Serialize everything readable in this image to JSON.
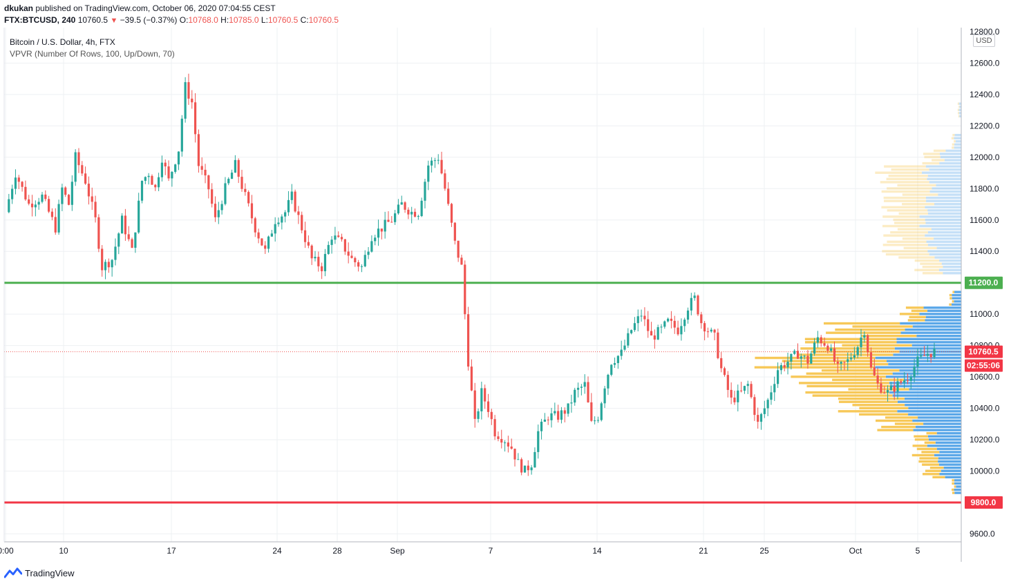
{
  "header": {
    "user": "dkukan",
    "published": "published on TradingView.com, October 06, 2020 07:04:55 CEST",
    "symbol": "FTX:BTCUSD, 240",
    "last": "10760.5",
    "change": "−39.5 (−0.37%)",
    "o_label": "O:",
    "o_val": "10768.0",
    "h_label": "H:",
    "h_val": "10785.0",
    "l_label": "L:",
    "l_val": "10760.5",
    "c_label": "C:",
    "c_val": "10760.5"
  },
  "legend": {
    "title": "Bitcoin / U.S. Dollar, 4h, FTX",
    "indicator": "VPVR (Number Of Rows, 100, Up/Down, 70)"
  },
  "currency": "USD",
  "price_labels": {
    "green_level": "11200.0",
    "red_level": "9800.0",
    "last_price": "10760.5",
    "countdown": "02:55:06",
    "top_partial": "12800.0"
  },
  "footer": {
    "brand": "TradingView"
  },
  "colors": {
    "up": "#26a69a",
    "down": "#ef5350",
    "green_line": "#4caf50",
    "red_line": "#f23645",
    "vp_up": "#5aa7e8",
    "vp_down": "#f7c858",
    "grid": "#eef0f3"
  },
  "chart_data": {
    "type": "candlestick",
    "title": "Bitcoin / U.S. Dollar, 4h, FTX",
    "ylim": [
      9500,
      12850
    ],
    "y_ticks": [
      12600,
      12400,
      12200,
      12000,
      11800,
      11600,
      11400,
      11200,
      11000,
      10800,
      10600,
      10400,
      10200,
      10000,
      9800,
      9600
    ],
    "y_tick_labels": [
      "12600.0",
      "12400.0",
      "12200.0",
      "12000.0",
      "11800.0",
      "11600.0",
      "11400.0",
      "11200.0",
      "11000.0",
      "10800.0",
      "10600.0",
      "10400.0",
      "10200.0",
      "10000.0",
      "9800.0",
      "9600.0"
    ],
    "x_tick_labels": [
      "0:00",
      "10",
      "17",
      "24",
      "28",
      "Sep",
      "7",
      "14",
      "21",
      "25",
      "Oct",
      "5"
    ],
    "horizontal_levels": [
      {
        "value": 11200,
        "label": "11200.0",
        "color": "#4caf50"
      },
      {
        "value": 9800,
        "label": "9800.0",
        "color": "#f23645"
      }
    ],
    "last_price": 10760.5,
    "path": [
      [
        0,
        11650
      ],
      [
        3,
        11900
      ],
      [
        7,
        11700
      ],
      [
        11,
        11750
      ],
      [
        15,
        11550
      ],
      [
        17,
        11800
      ],
      [
        19,
        11700
      ],
      [
        21,
        12000
      ],
      [
        24,
        11850
      ],
      [
        27,
        11600
      ],
      [
        29,
        11300
      ],
      [
        32,
        11350
      ],
      [
        35,
        11600
      ],
      [
        38,
        11400
      ],
      [
        41,
        11850
      ],
      [
        43,
        11900
      ],
      [
        45,
        11800
      ],
      [
        47,
        12000
      ],
      [
        49,
        11850
      ],
      [
        52,
        12050
      ],
      [
        54,
        12450
      ],
      [
        56,
        12350
      ],
      [
        58,
        11950
      ],
      [
        61,
        11800
      ],
      [
        63,
        11600
      ],
      [
        66,
        11800
      ],
      [
        69,
        11950
      ],
      [
        72,
        11750
      ],
      [
        75,
        11550
      ],
      [
        78,
        11400
      ],
      [
        81,
        11600
      ],
      [
        84,
        11650
      ],
      [
        86,
        11750
      ],
      [
        89,
        11550
      ],
      [
        92,
        11350
      ],
      [
        95,
        11300
      ],
      [
        98,
        11500
      ],
      [
        101,
        11450
      ],
      [
        104,
        11350
      ],
      [
        107,
        11300
      ],
      [
        110,
        11500
      ],
      [
        113,
        11550
      ],
      [
        116,
        11600
      ],
      [
        119,
        11700
      ],
      [
        122,
        11650
      ],
      [
        124,
        11650
      ],
      [
        127,
        11950
      ],
      [
        130,
        12000
      ],
      [
        132,
        11800
      ],
      [
        135,
        11450
      ],
      [
        137,
        11300
      ],
      [
        139,
        10700
      ],
      [
        141,
        10300
      ],
      [
        143,
        10500
      ],
      [
        145,
        10400
      ],
      [
        147,
        10250
      ],
      [
        150,
        10200
      ],
      [
        152,
        10150
      ],
      [
        154,
        10050
      ],
      [
        156,
        10000
      ],
      [
        158,
        10050
      ],
      [
        160,
        10250
      ],
      [
        163,
        10350
      ],
      [
        166,
        10350
      ],
      [
        169,
        10400
      ],
      [
        171,
        10500
      ],
      [
        174,
        10550
      ],
      [
        176,
        10300
      ],
      [
        178,
        10350
      ],
      [
        180,
        10550
      ],
      [
        182,
        10700
      ],
      [
        185,
        10750
      ],
      [
        188,
        10900
      ],
      [
        191,
        11000
      ],
      [
        194,
        10850
      ],
      [
        197,
        10900
      ],
      [
        199,
        10950
      ],
      [
        202,
        10900
      ],
      [
        205,
        11050
      ],
      [
        207,
        11100
      ],
      [
        209,
        10950
      ],
      [
        211,
        10900
      ],
      [
        213,
        10850
      ],
      [
        215,
        10650
      ],
      [
        218,
        10450
      ],
      [
        221,
        10500
      ],
      [
        223,
        10550
      ],
      [
        226,
        10300
      ],
      [
        229,
        10450
      ],
      [
        232,
        10650
      ],
      [
        235,
        10700
      ],
      [
        238,
        10750
      ],
      [
        241,
        10700
      ],
      [
        244,
        10850
      ],
      [
        247,
        10800
      ],
      [
        250,
        10650
      ],
      [
        253,
        10700
      ],
      [
        256,
        10800
      ],
      [
        258,
        10900
      ],
      [
        260,
        10650
      ],
      [
        262,
        10550
      ],
      [
        265,
        10500
      ],
      [
        268,
        10550
      ],
      [
        271,
        10600
      ],
      [
        274,
        10700
      ],
      [
        277,
        10750
      ],
      [
        279,
        10761
      ]
    ],
    "volume_profile": {
      "rows": 100,
      "mode": "Up/Down",
      "width_pct": 70,
      "up_color": "#5aa7e8",
      "down_color": "#f7c858",
      "levels": [
        {
          "price": 9900,
          "up": 6,
          "down": 2
        },
        {
          "price": 10000,
          "up": 18,
          "down": 14
        },
        {
          "price": 10100,
          "up": 22,
          "down": 18
        },
        {
          "price": 10200,
          "up": 28,
          "down": 12
        },
        {
          "price": 10300,
          "up": 40,
          "down": 30
        },
        {
          "price": 10400,
          "up": 52,
          "down": 48
        },
        {
          "price": 10500,
          "up": 60,
          "down": 70
        },
        {
          "price": 10600,
          "up": 62,
          "down": 78
        },
        {
          "price": 10700,
          "up": 70,
          "down": 98
        },
        {
          "price": 10800,
          "up": 55,
          "down": 78
        },
        {
          "price": 10900,
          "up": 50,
          "down": 62
        },
        {
          "price": 11000,
          "up": 34,
          "down": 16
        },
        {
          "price": 11100,
          "up": 8,
          "down": 2
        },
        {
          "price": 11300,
          "up": 18,
          "down": 20
        },
        {
          "price": 11400,
          "up": 28,
          "down": 38
        },
        {
          "price": 11500,
          "up": 30,
          "down": 34
        },
        {
          "price": 11600,
          "up": 34,
          "down": 30
        },
        {
          "price": 11700,
          "up": 30,
          "down": 36
        },
        {
          "price": 11800,
          "up": 26,
          "down": 40
        },
        {
          "price": 11900,
          "up": 32,
          "down": 38
        },
        {
          "price": 12000,
          "up": 18,
          "down": 14
        },
        {
          "price": 12100,
          "up": 6,
          "down": 2
        },
        {
          "price": 12300,
          "up": 2,
          "down": 1
        }
      ]
    }
  }
}
